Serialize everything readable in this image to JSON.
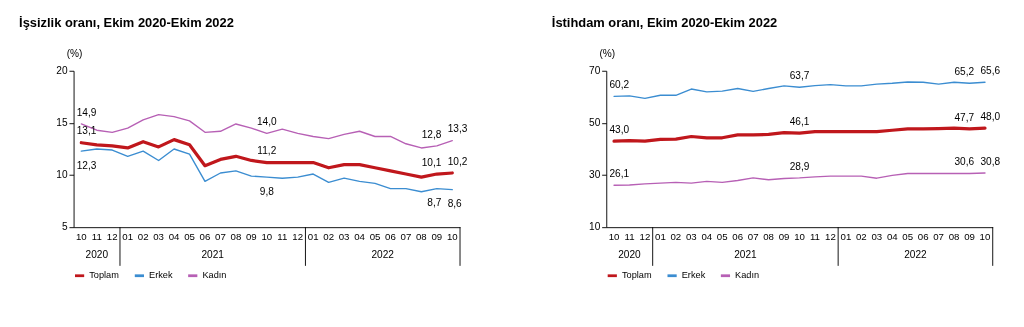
{
  "chart_data": [
    {
      "type": "line",
      "title": "İşsizlik oranı, Ekim 2020-Ekim 2022",
      "ylabel": "(%)",
      "categories": [
        "10",
        "11",
        "12",
        "01",
        "02",
        "03",
        "04",
        "05",
        "06",
        "07",
        "08",
        "09",
        "10",
        "11",
        "12",
        "01",
        "02",
        "03",
        "04",
        "05",
        "06",
        "07",
        "08",
        "09",
        "10"
      ],
      "annotations": [
        "2020",
        "2021",
        "2022"
      ],
      "ylim": [
        5,
        20
      ],
      "yticks": [
        5,
        10,
        15,
        20
      ],
      "legend": "bottom",
      "series": [
        {
          "name": "Toplam",
          "color": "#c0171c",
          "values": [
            13.1,
            12.9,
            12.8,
            12.6,
            13.2,
            12.7,
            13.4,
            12.9,
            10.9,
            11.5,
            11.8,
            11.4,
            11.2,
            11.2,
            11.2,
            11.2,
            10.7,
            11.0,
            11.0,
            10.7,
            10.4,
            10.1,
            9.8,
            10.1,
            10.2
          ],
          "value_labels": [
            "13,1",
            null,
            null,
            null,
            null,
            null,
            null,
            null,
            null,
            null,
            null,
            null,
            "11,2",
            null,
            null,
            null,
            null,
            null,
            null,
            null,
            null,
            null,
            null,
            "10,1",
            "10,2"
          ]
        },
        {
          "name": "Erkek",
          "color": "#3b8dd1",
          "values": [
            12.3,
            12.5,
            12.4,
            11.8,
            12.3,
            11.4,
            12.5,
            12.0,
            9.4,
            10.2,
            10.4,
            9.9,
            9.8,
            9.7,
            9.8,
            10.1,
            9.3,
            9.7,
            9.4,
            9.2,
            8.7,
            8.7,
            8.4,
            8.7,
            8.6
          ],
          "value_labels": [
            "12,3",
            null,
            null,
            null,
            null,
            null,
            null,
            null,
            null,
            null,
            null,
            null,
            "9,8",
            null,
            null,
            null,
            null,
            null,
            null,
            null,
            null,
            null,
            null,
            "8,7",
            "8,6"
          ]
        },
        {
          "name": "Kadın",
          "color": "#b760b5",
          "values": [
            14.9,
            14.3,
            14.1,
            14.5,
            15.3,
            15.8,
            15.6,
            15.2,
            14.1,
            14.2,
            14.9,
            14.5,
            14.0,
            14.4,
            14.0,
            13.7,
            13.5,
            13.9,
            14.2,
            13.7,
            13.7,
            13.0,
            12.6,
            12.8,
            13.3
          ],
          "value_labels": [
            "14,9",
            null,
            null,
            null,
            null,
            null,
            null,
            null,
            null,
            null,
            null,
            null,
            "14,0",
            null,
            null,
            null,
            null,
            null,
            null,
            null,
            null,
            null,
            null,
            "12,8",
            "13,3"
          ]
        }
      ]
    },
    {
      "type": "line",
      "title": "İstihdam oranı, Ekim 2020-Ekim 2022",
      "ylabel": "(%)",
      "categories": [
        "10",
        "11",
        "12",
        "01",
        "02",
        "03",
        "04",
        "05",
        "06",
        "07",
        "08",
        "09",
        "10",
        "11",
        "12",
        "01",
        "02",
        "03",
        "04",
        "05",
        "06",
        "07",
        "08",
        "09",
        "10"
      ],
      "annotations": [
        "2020",
        "2021",
        "2022"
      ],
      "ylim": [
        10,
        70
      ],
      "yticks": [
        10,
        30,
        50,
        70
      ],
      "legend": "bottom",
      "series": [
        {
          "name": "Toplam",
          "color": "#c0171c",
          "values": [
            43.0,
            43.2,
            43.0,
            43.7,
            43.8,
            44.8,
            44.3,
            44.3,
            45.4,
            45.4,
            45.6,
            46.3,
            46.1,
            46.7,
            46.7,
            46.7,
            46.7,
            46.7,
            47.2,
            47.7,
            47.7,
            47.8,
            48.0,
            47.7,
            48.0
          ],
          "value_labels": [
            "43,0",
            null,
            null,
            null,
            null,
            null,
            null,
            null,
            null,
            null,
            null,
            null,
            "46,1",
            null,
            null,
            null,
            null,
            null,
            null,
            null,
            null,
            null,
            null,
            "47,7",
            "48,0"
          ]
        },
        {
          "name": "Erkek",
          "color": "#3b8dd1",
          "values": [
            60.2,
            60.4,
            59.4,
            60.6,
            60.6,
            63.0,
            61.9,
            62.2,
            63.2,
            62.1,
            63.2,
            64.2,
            63.7,
            64.3,
            64.7,
            64.2,
            64.2,
            64.9,
            65.2,
            65.7,
            65.6,
            64.9,
            65.6,
            65.2,
            65.6
          ],
          "value_labels": [
            "60,2",
            null,
            null,
            null,
            null,
            null,
            null,
            null,
            null,
            null,
            null,
            null,
            "63,7",
            null,
            null,
            null,
            null,
            null,
            null,
            null,
            null,
            null,
            null,
            "65,2",
            "65,6"
          ]
        },
        {
          "name": "Kadın",
          "color": "#b760b5",
          "values": [
            26.1,
            26.2,
            26.6,
            26.9,
            27.2,
            26.9,
            27.6,
            27.2,
            27.9,
            28.9,
            28.2,
            28.7,
            28.9,
            29.3,
            29.6,
            29.6,
            29.6,
            28.8,
            29.9,
            30.6,
            30.6,
            30.6,
            30.6,
            30.6,
            30.8
          ],
          "value_labels": [
            "26,1",
            null,
            null,
            null,
            null,
            null,
            null,
            null,
            null,
            null,
            null,
            null,
            "28,9",
            null,
            null,
            null,
            null,
            null,
            null,
            null,
            null,
            null,
            null,
            "30,6",
            "30,8"
          ]
        }
      ]
    }
  ]
}
